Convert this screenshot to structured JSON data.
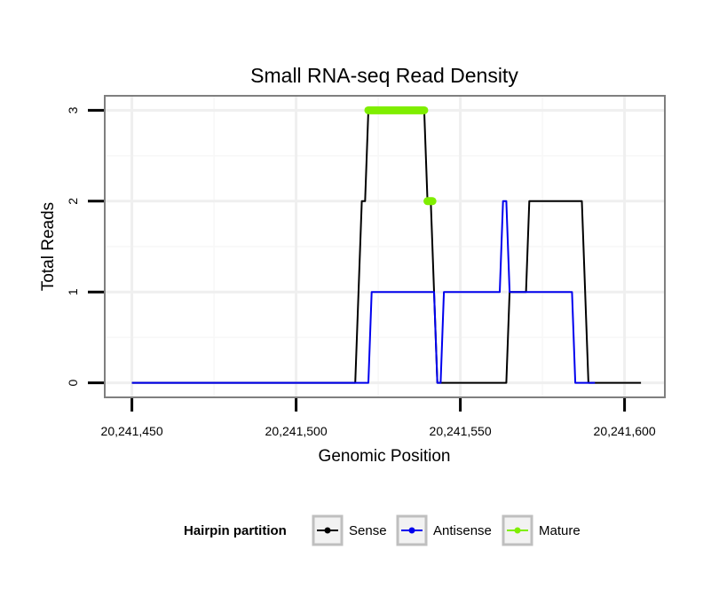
{
  "chart_data": {
    "type": "line",
    "title": "Small RNA-seq Read Density",
    "xlabel": "Genomic Position",
    "ylabel": "Total Reads",
    "xlim": [
      20241442,
      20241612
    ],
    "ylim": [
      -0.15,
      3.15
    ],
    "x_ticks": [
      20241450,
      20241500,
      20241550,
      20241600
    ],
    "x_tick_labels": [
      "20,241,450",
      "20,241,500",
      "20,241,550",
      "20,241,600"
    ],
    "y_ticks": [
      0,
      1,
      2,
      3
    ],
    "y_tick_labels": [
      "0",
      "1",
      "2",
      "3"
    ],
    "x_minor_gridlines": [
      20241475,
      20241525,
      20241575
    ],
    "y_minor_gridlines": [
      0.5,
      1.5,
      2.5
    ],
    "grid": true,
    "legend": {
      "title": "Hairpin partition",
      "position": "bottom",
      "entries": [
        "Sense",
        "Antisense",
        "Mature"
      ]
    },
    "series": [
      {
        "name": "Sense",
        "color": "#000000",
        "style": "line",
        "x": [
          20241450,
          20241518,
          20241520,
          20241521,
          20241522,
          20241539,
          20241540,
          20241541,
          20241543,
          20241564,
          20241565,
          20241570,
          20241571,
          20241587,
          20241589,
          20241605
        ],
        "y": [
          0,
          0,
          2,
          2,
          3,
          3,
          2,
          2,
          0,
          0,
          1,
          1,
          2,
          2,
          0,
          0
        ]
      },
      {
        "name": "Antisense",
        "color": "#0000ee",
        "style": "line",
        "x": [
          20241450,
          20241522,
          20241523,
          20241542,
          20241543,
          20241544,
          20241545,
          20241562,
          20241563,
          20241564,
          20241565,
          20241566,
          20241584,
          20241585,
          20241591
        ],
        "y": [
          0,
          0,
          1,
          1,
          0,
          0,
          1,
          1,
          2,
          2,
          1,
          1,
          1,
          0,
          0
        ]
      },
      {
        "name": "Mature",
        "color": "#7fee00",
        "style": "thick",
        "segments": [
          {
            "x": [
              20241522,
              20241539
            ],
            "y": [
              3,
              3
            ]
          },
          {
            "x": [
              20241540,
              20241541.5
            ],
            "y": [
              2,
              2
            ]
          }
        ]
      }
    ]
  }
}
